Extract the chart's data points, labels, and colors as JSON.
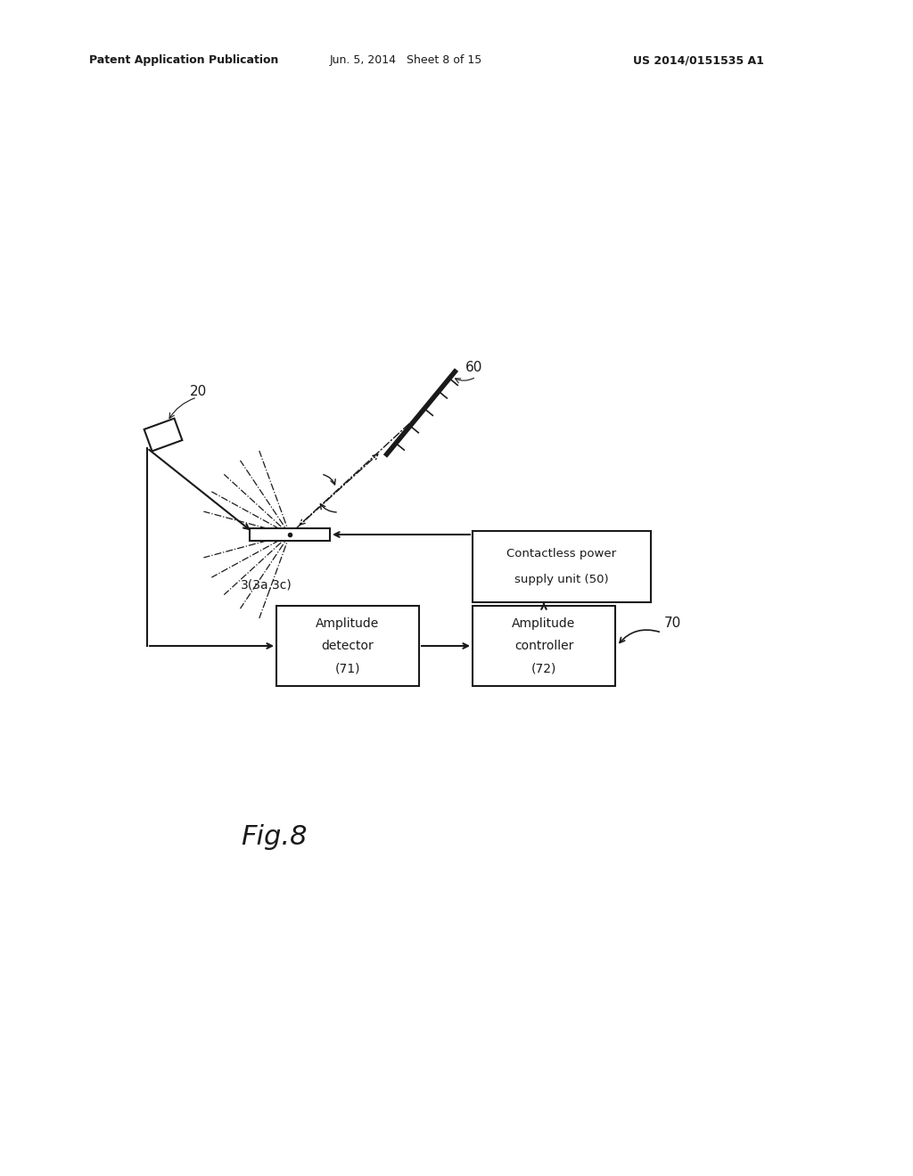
{
  "background_color": "#ffffff",
  "header_text": "Patent Application Publication",
  "header_date": "Jun. 5, 2014   Sheet 8 of 15",
  "header_patent": "US 2014/0151535 A1",
  "fig_label": "Fig.8",
  "label_20": "20",
  "label_60": "60",
  "label_3": "3(3a,3c)",
  "label_50_line1": "Contactless power",
  "label_50_line2": "supply unit (50)",
  "label_71_line1": "Amplitude",
  "label_71_line2": "detector",
  "label_71_line3": "(71)",
  "label_72_line1": "Amplitude",
  "label_72_line2": "controller",
  "label_72_line3": "(72)",
  "label_70": "70",
  "text_color": "#1a1a1a",
  "line_color": "#1a1a1a"
}
